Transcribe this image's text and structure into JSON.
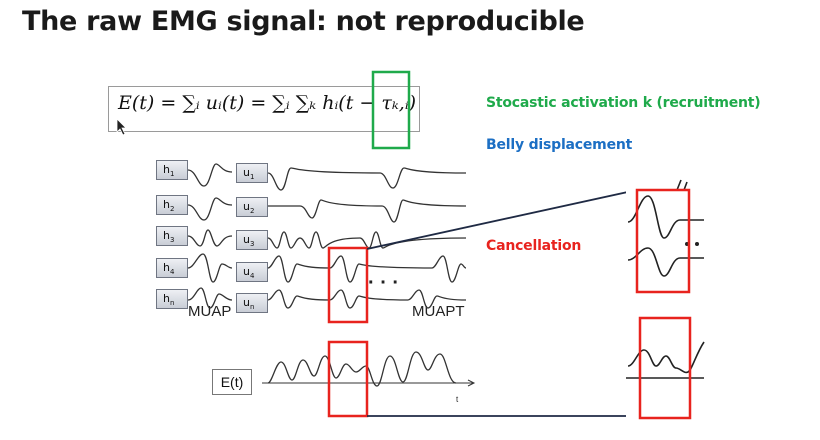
{
  "title": "The raw EMG signal: not reproducible",
  "formula": "E(t) = ∑ᵢ uᵢ(t) = ∑ᵢ ∑ₖ hᵢ(t − τₖ,ᵢ)",
  "labels": {
    "stochastic": "Stocastic activation k (recruitment)",
    "belly": "Belly displacement",
    "cancellation": "Cancellation"
  },
  "colors": {
    "green": "#1faa4b",
    "blue": "#1c6fc4",
    "red": "#e8231e"
  },
  "rows": [
    {
      "h": "h",
      "h_sub": "1",
      "u": "u",
      "u_sub": "1"
    },
    {
      "h": "h",
      "h_sub": "2",
      "u": "u",
      "u_sub": "2"
    },
    {
      "h": "h",
      "h_sub": "3",
      "u": "u",
      "u_sub": "3"
    },
    {
      "h": "h",
      "h_sub": "4",
      "u": "u",
      "u_sub": "4"
    },
    {
      "h": "h",
      "h_sub": "n",
      "u": "u",
      "u_sub": "n"
    }
  ],
  "captions": {
    "muap": "MUAP",
    "muapt": "MUAPT",
    "ellipsis": "· · ·",
    "et": "E(t)",
    "t_axis": "t"
  }
}
